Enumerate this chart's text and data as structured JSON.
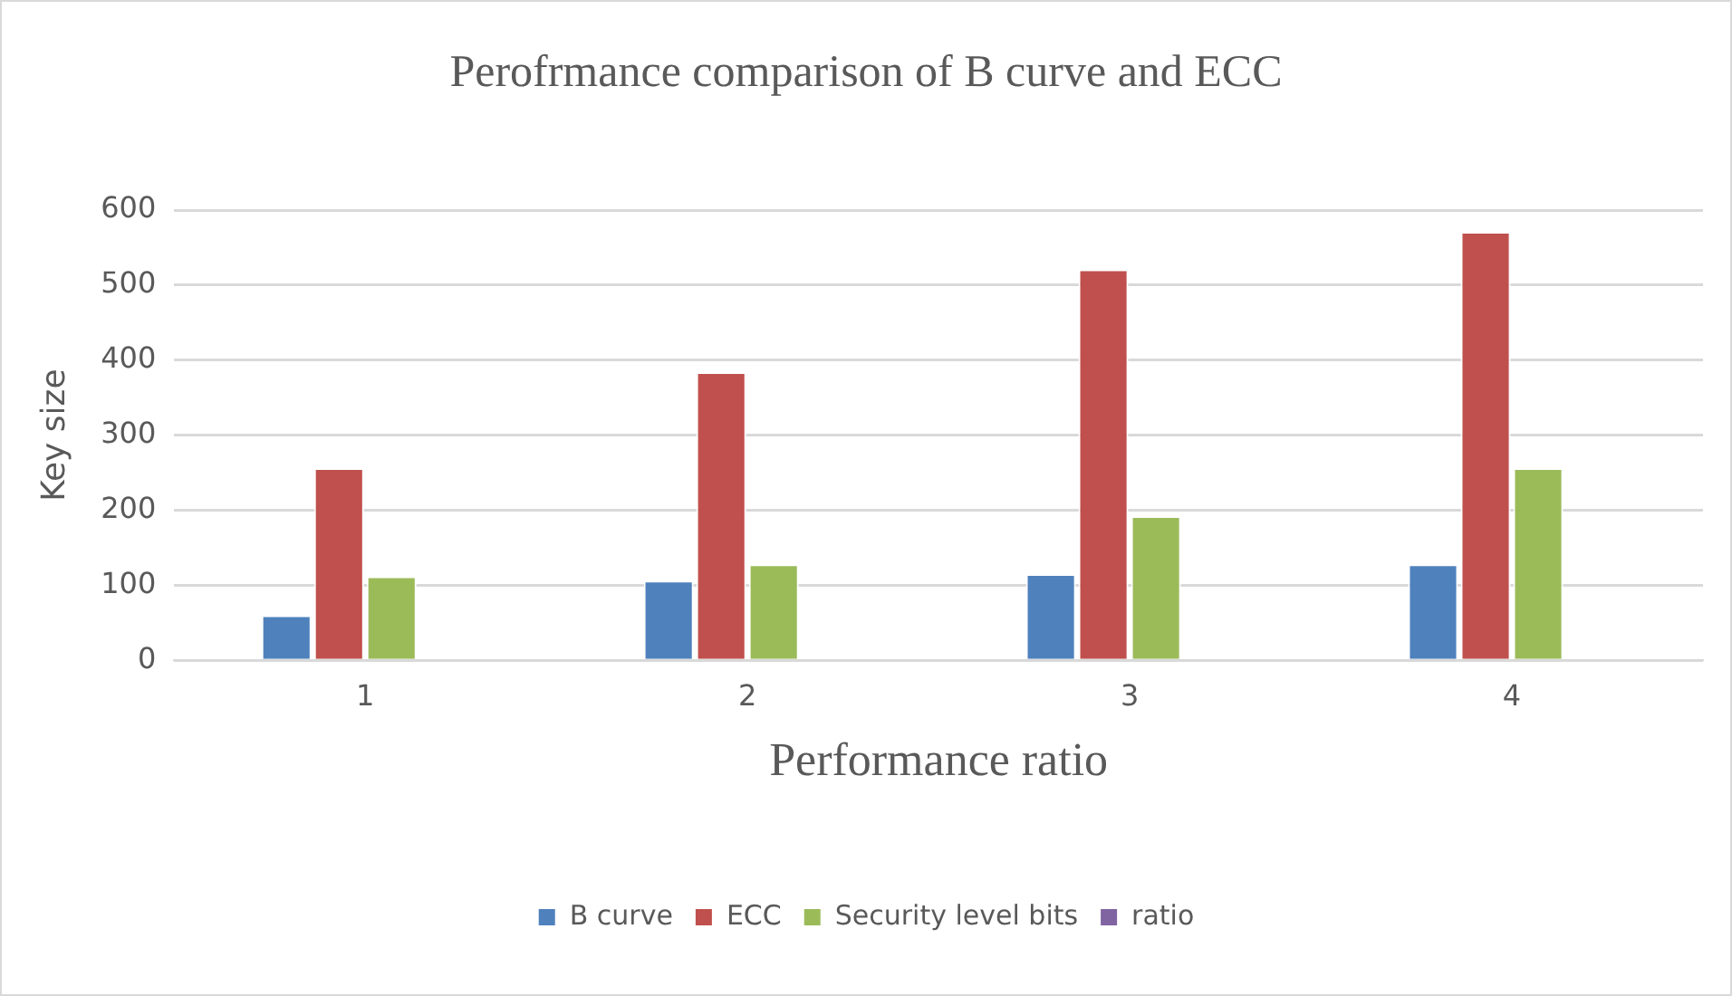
{
  "chart_data": {
    "type": "bar",
    "title": "Perofrmance comparison of B curve and ECC",
    "xlabel": "Performance ratio",
    "ylabel": "Key size",
    "categories": [
      "1",
      "2",
      "3",
      "4"
    ],
    "series": [
      {
        "name": "B curve",
        "color": "#4f81bd",
        "values": [
          60,
          106,
          115,
          128
        ]
      },
      {
        "name": "ECC",
        "color": "#c0504d",
        "values": [
          256,
          384,
          521,
          571
        ]
      },
      {
        "name": "Security level bits",
        "color": "#9bbb59",
        "values": [
          112,
          128,
          192,
          256
        ]
      },
      {
        "name": "ratio",
        "color": "#8064a2",
        "values": [
          null,
          null,
          null,
          null
        ]
      }
    ],
    "ylim": [
      0,
      600
    ],
    "yticks": [
      0,
      100,
      200,
      300,
      400,
      500,
      600
    ],
    "grid": "y",
    "legend": "bottom"
  }
}
